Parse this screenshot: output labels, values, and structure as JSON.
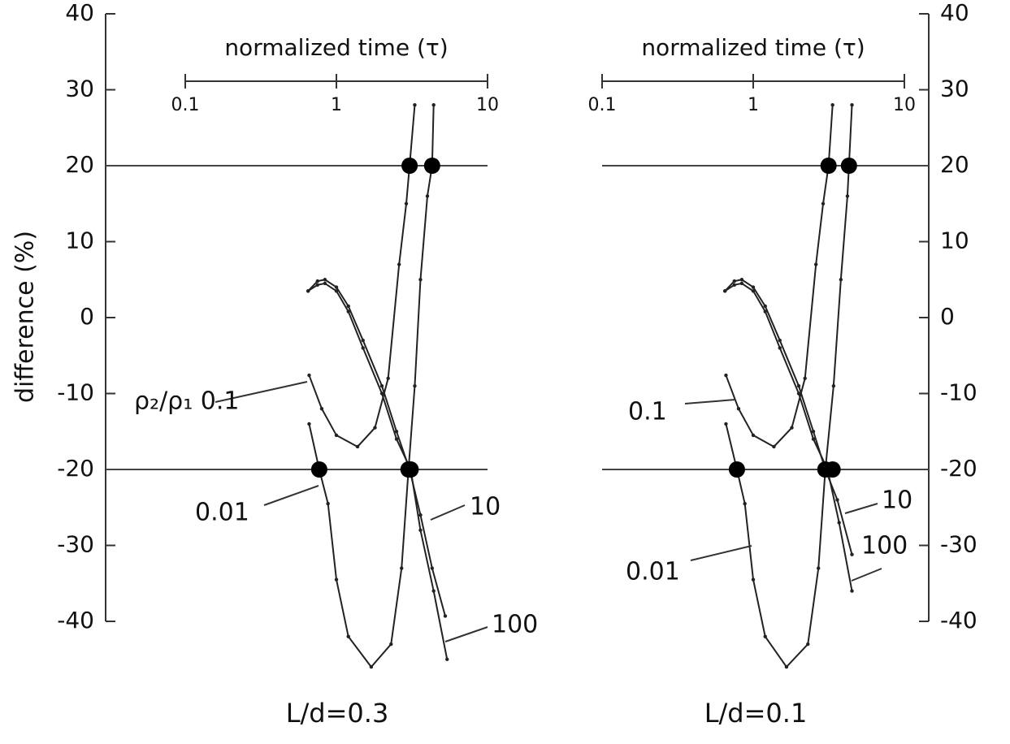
{
  "chart_data": [
    {
      "type": "line",
      "title": "L/d=0.3",
      "xlabel": "normalized time (τ)",
      "ylabel": "difference (%)",
      "xscale": "log",
      "xlim": [
        0.1,
        10
      ],
      "xticks": [
        0.1,
        1,
        10
      ],
      "ylim": [
        -40,
        40
      ],
      "yticks": [
        -40,
        -30,
        -20,
        -10,
        0,
        10,
        20,
        30,
        40
      ],
      "yaxis_side": "left",
      "hlines": [
        20,
        -20
      ],
      "series": [
        {
          "name": "0.01",
          "color": "#222",
          "x": [
            0.66,
            0.77,
            0.88,
            1.0,
            1.2,
            1.7,
            2.3,
            2.7,
            3.0,
            3.3,
            3.6,
            4.0,
            4.3,
            4.4
          ],
          "values": [
            -14,
            -20,
            -24.5,
            -34.5,
            -42,
            -46,
            -43,
            -33,
            -20,
            -9,
            5,
            16,
            20,
            28
          ]
        },
        {
          "name": "ρ₂/ρ₁ 0.1",
          "color": "#222",
          "x": [
            0.66,
            0.8,
            1.0,
            1.38,
            1.8,
            2.2,
            2.6,
            2.9,
            3.05,
            3.3
          ],
          "values": [
            -7.6,
            -12,
            -15.5,
            -17,
            -14.5,
            -8,
            7,
            15,
            20,
            28
          ]
        },
        {
          "name": "10",
          "color": "#222",
          "x": [
            0.65,
            0.75,
            0.84,
            1.0,
            1.2,
            1.5,
            2.0,
            2.5,
            3.05,
            3.6,
            4.3,
            5.25
          ],
          "values": [
            3.5,
            4.8,
            5,
            4,
            1.5,
            -3,
            -9,
            -15,
            -20,
            -26,
            -33,
            -39.3
          ]
        },
        {
          "name": "100",
          "color": "#222",
          "x": [
            0.65,
            0.75,
            0.84,
            1.0,
            1.2,
            1.5,
            2.0,
            2.5,
            3.1,
            3.6,
            4.4,
            5.4
          ],
          "values": [
            3.5,
            4.3,
            4.5,
            3.5,
            0.8,
            -4,
            -10,
            -16,
            -20,
            -28,
            -36,
            -45
          ]
        }
      ],
      "markers": {
        "x": [
          0.77,
          3.0,
          3.1,
          3.05,
          4.3
        ],
        "y": [
          -20,
          -20,
          -20,
          20,
          20
        ]
      }
    },
    {
      "type": "line",
      "title": "L/d=0.1",
      "xlabel": "normalized time (τ)",
      "xscale": "log",
      "xlim": [
        0.1,
        10
      ],
      "xticks": [
        0.1,
        1,
        10
      ],
      "ylim": [
        -40,
        40
      ],
      "yticks": [
        -40,
        -30,
        -20,
        -10,
        0,
        10,
        20,
        30,
        40
      ],
      "yaxis_side": "right",
      "hlines": [
        20,
        -20
      ],
      "series": [
        {
          "name": "0.01",
          "color": "#222",
          "x": [
            0.66,
            0.78,
            0.88,
            1.0,
            1.2,
            1.66,
            2.3,
            2.7,
            3.0,
            3.4,
            3.8,
            4.2,
            4.3,
            4.5
          ],
          "values": [
            -14,
            -20,
            -24.5,
            -34.5,
            -42,
            -46,
            -43,
            -33,
            -20,
            -9,
            5,
            16,
            20,
            28
          ]
        },
        {
          "name": "0.1",
          "color": "#222",
          "x": [
            0.66,
            0.8,
            1.0,
            1.37,
            1.8,
            2.2,
            2.6,
            2.9,
            3.15,
            3.35
          ],
          "values": [
            -7.6,
            -12,
            -15.5,
            -17,
            -14.5,
            -8,
            7,
            15,
            20,
            28
          ]
        },
        {
          "name": "10",
          "color": "#222",
          "x": [
            0.65,
            0.75,
            0.84,
            1.0,
            1.2,
            1.5,
            2.0,
            2.5,
            3.0,
            3.6,
            4.5
          ],
          "values": [
            3.5,
            4.8,
            5,
            4,
            1.5,
            -3,
            -9,
            -15,
            -20,
            -24,
            -31.2
          ]
        },
        {
          "name": "100",
          "color": "#222",
          "x": [
            0.65,
            0.75,
            0.84,
            1.0,
            1.2,
            1.5,
            2.0,
            2.5,
            3.1,
            3.7,
            4.5
          ],
          "values": [
            3.5,
            4.3,
            4.5,
            3.5,
            0.8,
            -4,
            -10,
            -16,
            -20,
            -27,
            -36
          ]
        }
      ],
      "markers": {
        "x": [
          0.78,
          3.0,
          3.35,
          3.15,
          4.3
        ],
        "y": [
          -20,
          -20,
          -20,
          20,
          20
        ]
      }
    }
  ]
}
